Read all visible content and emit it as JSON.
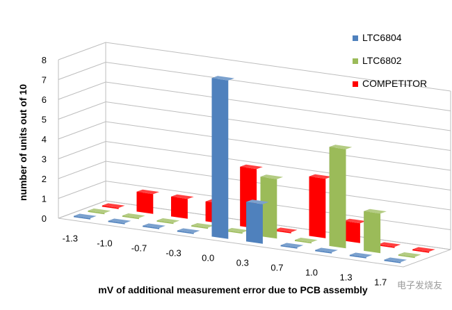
{
  "chart_data": {
    "type": "bar",
    "subtype": "3d-clustered-by-depth",
    "title": "",
    "xlabel": "mV of additional measurement error due to PCB assembly",
    "ylabel": "number of units out of 10",
    "ylim": [
      0,
      8
    ],
    "yticks": [
      "0",
      "1",
      "2",
      "3",
      "4",
      "5",
      "6",
      "7",
      "8"
    ],
    "categories": [
      "-1.3",
      "-1.0",
      "-0.7",
      "-0.3",
      "0.0",
      "0.3",
      "0.7",
      "1.0",
      "1.3",
      "1.7"
    ],
    "series": [
      {
        "name": "LTC6804",
        "color": "#4f81bd",
        "values": [
          0,
          0,
          0,
          0,
          8,
          2,
          0,
          0,
          0,
          0
        ]
      },
      {
        "name": "LTC6802",
        "color": "#9bbb59",
        "values": [
          0,
          0,
          0,
          0,
          0,
          3,
          0,
          5,
          2,
          0
        ]
      },
      {
        "name": "COMPETITOR",
        "color": "#ff0000",
        "values": [
          0,
          1,
          1,
          1,
          3,
          0,
          3,
          1,
          0,
          0
        ]
      }
    ],
    "legend": "top-right"
  },
  "watermark": "电子发烧友"
}
